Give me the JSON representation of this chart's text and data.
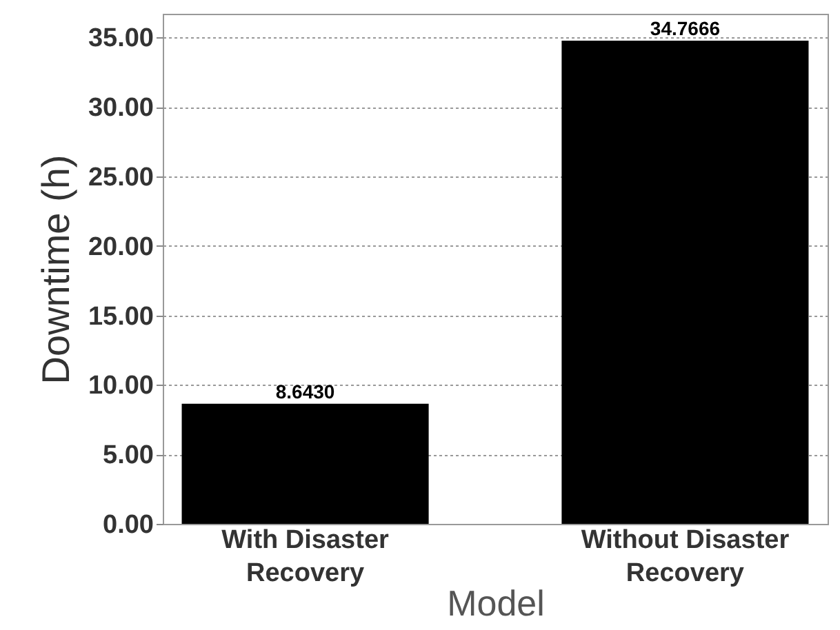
{
  "chart_data": {
    "type": "bar",
    "xlabel": "Model",
    "ylabel": "Downtime (h)",
    "categories": [
      "With Disaster Recovery",
      "Without Disaster Recovery"
    ],
    "values": [
      8.643,
      34.7666
    ],
    "color": "#000000",
    "value_labels": [
      "8.6430",
      "34.7666"
    ],
    "ylim": [
      0,
      36.7
    ],
    "yticks": [
      {
        "value": 0,
        "label": "0.00"
      },
      {
        "value": 5,
        "label": "5.00"
      },
      {
        "value": 10,
        "label": "10.00"
      },
      {
        "value": 15,
        "label": "15.00"
      },
      {
        "value": 20,
        "label": "20.00"
      },
      {
        "value": 25,
        "label": "25.00"
      },
      {
        "value": 30,
        "label": "30.00"
      },
      {
        "value": 35,
        "label": "35.00"
      }
    ],
    "grid": "y"
  }
}
